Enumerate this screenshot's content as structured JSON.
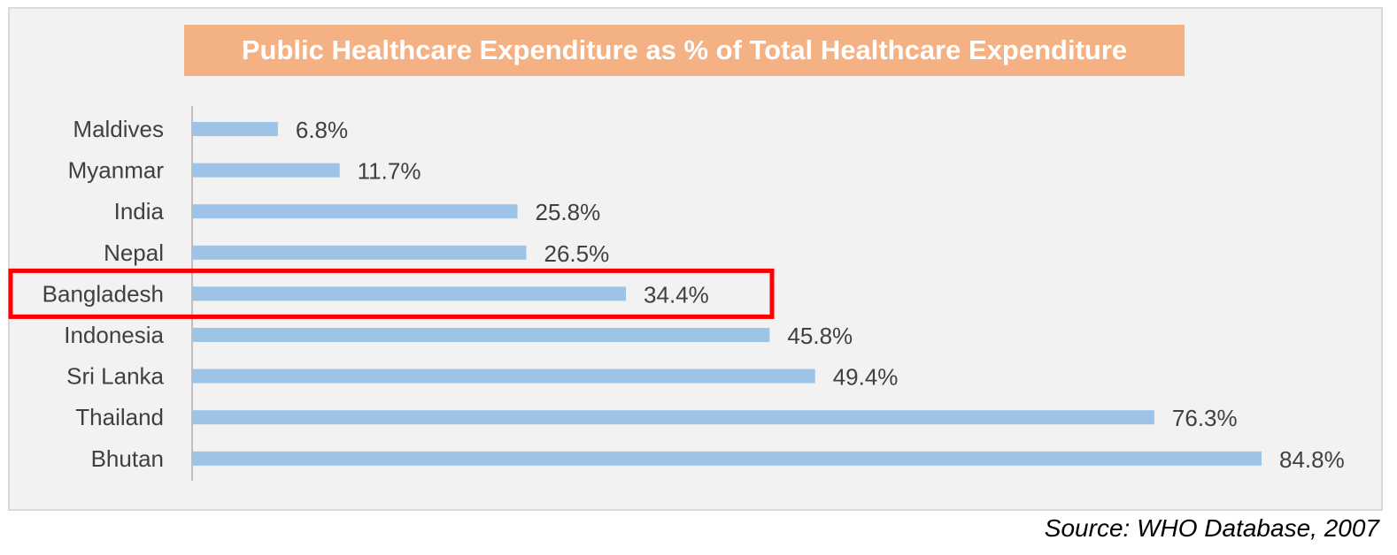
{
  "colors": {
    "bar": "#9dc3e6",
    "title_background": "#f4b183",
    "highlight_box": "#ff0000",
    "label_text": "#404040",
    "axis_line": "#bfbfbf"
  },
  "chart_data": {
    "type": "bar",
    "orientation": "horizontal",
    "title": "Public Healthcare Expenditure as % of Total Healthcare Expenditure",
    "categories": [
      "Maldives",
      "Myanmar",
      "India",
      "Nepal",
      "Bangladesh",
      "Indonesia",
      "Sri Lanka",
      "Thailand",
      "Bhutan"
    ],
    "values": [
      6.8,
      11.7,
      25.8,
      26.5,
      34.4,
      45.8,
      49.4,
      76.3,
      84.8
    ],
    "data_labels": [
      "6.8%",
      "11.7%",
      "25.8%",
      "26.5%",
      "34.4%",
      "45.8%",
      "49.4%",
      "76.3%",
      "84.8%"
    ],
    "value_unit": "%",
    "xlim": [
      0,
      84.8
    ],
    "grid": false,
    "legend": "none",
    "highlighted_category": "Bangladesh"
  },
  "source": "Source: WHO Database, 2007"
}
